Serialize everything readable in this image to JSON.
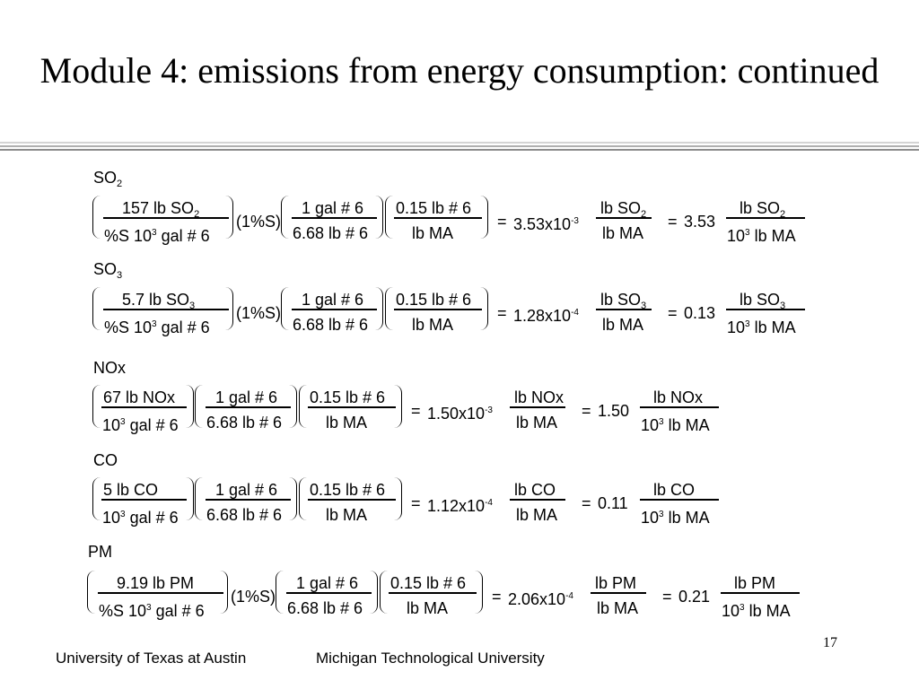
{
  "slide": {
    "title": "Module 4: emissions from energy consumption: continued",
    "page_number": "17",
    "footer_left": "University of Texas at Austin",
    "footer_right": "Michigan Technological University",
    "divider_colors": [
      "#d4d4d4",
      "#b0b0b0",
      "#8c8c8c"
    ]
  },
  "equations": {
    "so2": {
      "heading": "SO",
      "heading_sub": "2",
      "f1_num": "157 lb SO",
      "f1_num_sub": "2",
      "f1_den_a": "%S  10",
      "f1_den_sup": "3",
      "f1_den_b": "gal # 6",
      "factor": "(1%S)",
      "f2_num": "1 gal # 6",
      "f2_den": "6.68 lb # 6",
      "f3_num": "0.15 lb # 6",
      "f3_den": "lb MA",
      "eq1": "=",
      "r1_mant": "3.53x10",
      "r1_exp": "-3",
      "r1_num": "lb SO",
      "r1_num_sub": "2",
      "r1_den": "lb MA",
      "eq2": "=",
      "r2": "3.53",
      "r2_num": "lb SO",
      "r2_num_sub": "2",
      "r2_den_a": "10",
      "r2_den_sup": "3",
      "r2_den_b": "lb MA"
    },
    "so3": {
      "heading": "SO",
      "heading_sub": "3",
      "f1_num": "5.7 lb SO",
      "f1_num_sub": "3",
      "f1_den_a": "%S  10",
      "f1_den_sup": "3",
      "f1_den_b": "gal # 6",
      "factor": "(1%S)",
      "f2_num": "1 gal # 6",
      "f2_den": "6.68 lb # 6",
      "f3_num": "0.15 lb # 6",
      "f3_den": "lb MA",
      "eq1": "=",
      "r1_mant": "1.28x10",
      "r1_exp": "-4",
      "r1_num": "lb SO",
      "r1_num_sub": "3",
      "r1_den": "lb MA",
      "eq2": "=",
      "r2": "0.13",
      "r2_num": "lb SO",
      "r2_num_sub": "3",
      "r2_den_a": "10",
      "r2_den_sup": "3",
      "r2_den_b": "lb MA"
    },
    "nox": {
      "heading": "NOx",
      "f1_num": "67 lb NOx",
      "f1_den_a": "10",
      "f1_den_sup": "3",
      "f1_den_b": "gal # 6",
      "f2_num": "1 gal # 6",
      "f2_den": "6.68 lb # 6",
      "f3_num": "0.15 lb # 6",
      "f3_den": "lb MA",
      "eq1": "=",
      "r1_mant": "1.50x10",
      "r1_exp": "-3",
      "r1_num": "lb NOx",
      "r1_den": "lb MA",
      "eq2": "=",
      "r2": "1.50",
      "r2_num": "lb NOx",
      "r2_den_a": "10",
      "r2_den_sup": "3",
      "r2_den_b": "lb MA"
    },
    "co": {
      "heading": "CO",
      "f1_num": "5 lb CO",
      "f1_den_a": "10",
      "f1_den_sup": "3",
      "f1_den_b": "gal # 6",
      "f2_num": "1 gal # 6",
      "f2_den": "6.68 lb # 6",
      "f3_num": "0.15 lb # 6",
      "f3_den": "lb MA",
      "eq1": "=",
      "r1_mant": "1.12x10",
      "r1_exp": "-4",
      "r1_num": "lb CO",
      "r1_den": "lb MA",
      "eq2": "=",
      "r2": "0.11",
      "r2_num": "lb CO",
      "r2_den_a": "10",
      "r2_den_sup": "3",
      "r2_den_b": "lb MA"
    },
    "pm": {
      "heading": "PM",
      "f1_num": "9.19 lb PM",
      "f1_den_a": "%S  10",
      "f1_den_sup": "3",
      "f1_den_b": "gal # 6",
      "factor": "(1%S)",
      "f2_num": "1 gal # 6",
      "f2_den": "6.68 lb # 6",
      "f3_num": "0.15 lb # 6",
      "f3_den": "lb MA",
      "eq1": "=",
      "r1_mant": "2.06x10",
      "r1_exp": "-4",
      "r1_num": "lb PM",
      "r1_den": "lb MA",
      "eq2": "=",
      "r2": "0.21",
      "r2_num": "lb PM",
      "r2_den_a": "10",
      "r2_den_sup": "3",
      "r2_den_b": "lb MA"
    }
  }
}
